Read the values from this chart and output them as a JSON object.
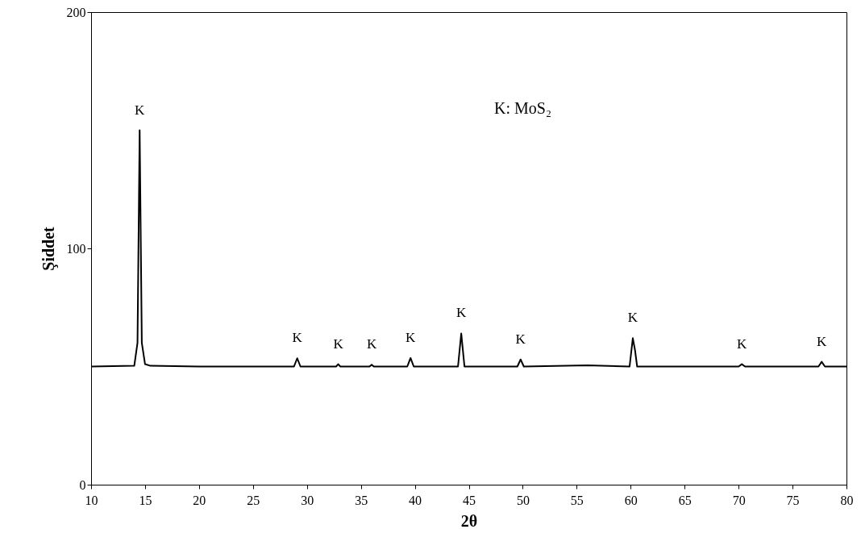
{
  "chart_data": {
    "type": "line",
    "xlabel": "2θ",
    "ylabel": "Şiddet",
    "x": [
      10,
      14.0,
      14.3,
      14.5,
      14.7,
      15.0,
      15.5,
      20,
      28.8,
      29.1,
      29.4,
      32.7,
      32.9,
      33.1,
      35.8,
      36,
      36.2,
      39.3,
      39.6,
      39.9,
      44.0,
      44.3,
      44.6,
      49.5,
      49.8,
      50.1,
      56,
      59.9,
      60.2,
      60.4,
      60.6,
      70.0,
      70.3,
      70.6,
      77.4,
      77.7,
      78,
      80
    ],
    "series": [
      {
        "color": "#000000",
        "values": [
          50,
          50.3,
          60,
          150,
          60,
          51,
          50.3,
          50,
          50,
          53.5,
          50,
          50,
          51,
          50,
          50,
          50.8,
          50,
          50,
          53.6,
          50,
          50,
          64,
          50,
          50,
          53,
          50,
          50.5,
          50,
          62,
          57,
          50,
          50,
          51,
          50,
          50,
          52,
          50,
          50
        ]
      }
    ],
    "xlim": [
      10,
      80
    ],
    "xticks": [
      10,
      15,
      20,
      25,
      30,
      35,
      40,
      45,
      50,
      55,
      60,
      65,
      70,
      75,
      80
    ],
    "ylim": [
      0,
      200
    ],
    "yticks": [
      0,
      100,
      200
    ],
    "grid": false,
    "marker": "none",
    "line_style": "solid",
    "annotations": [
      "K: MoS₂",
      {
        "text": "K",
        "x": 14.5,
        "y": 150
      },
      {
        "text": "K",
        "x": 29.1,
        "y": 53.5
      },
      {
        "text": "K",
        "x": 32.9,
        "y": 51
      },
      {
        "text": "K",
        "x": 36,
        "y": 50.8
      },
      {
        "text": "K",
        "x": 39.6,
        "y": 53.6
      },
      {
        "text": "K",
        "x": 44.3,
        "y": 64
      },
      {
        "text": "K",
        "x": 49.8,
        "y": 53
      },
      {
        "text": "K",
        "x": 60.2,
        "y": 62
      },
      {
        "text": "K",
        "x": 70.3,
        "y": 51
      },
      {
        "text": "K",
        "x": 77.7,
        "y": 52
      }
    ]
  }
}
